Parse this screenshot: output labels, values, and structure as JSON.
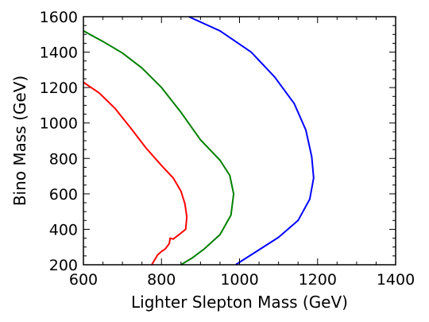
{
  "chart_data": {
    "type": "line",
    "title": "",
    "xlabel": "Lighter Slepton Mass (GeV)",
    "ylabel": "Bino Mass (GeV)",
    "xlim": [
      600,
      1400
    ],
    "ylim": [
      200,
      1600
    ],
    "xticks": [
      "600",
      "800",
      "1000",
      "1200",
      "1400"
    ],
    "yticks": [
      "200",
      "400",
      "600",
      "800",
      "1000",
      "1200",
      "1400",
      "1600"
    ],
    "grid": false,
    "series": [
      {
        "color": "#ff0000",
        "points": [
          [
            600,
            1230
          ],
          [
            640,
            1170
          ],
          [
            680,
            1085
          ],
          [
            720,
            975
          ],
          [
            760,
            860
          ],
          [
            800,
            760
          ],
          [
            830,
            690
          ],
          [
            850,
            615
          ],
          [
            860,
            545
          ],
          [
            865,
            470
          ],
          [
            862,
            400
          ],
          [
            845,
            370
          ],
          [
            830,
            345
          ],
          [
            822,
            350
          ],
          [
            820,
            320
          ],
          [
            810,
            290
          ],
          [
            800,
            275
          ],
          [
            790,
            255
          ],
          [
            775,
            200
          ]
        ]
      },
      {
        "color": "#008000",
        "points": [
          [
            600,
            1520
          ],
          [
            650,
            1460
          ],
          [
            700,
            1395
          ],
          [
            750,
            1310
          ],
          [
            800,
            1200
          ],
          [
            850,
            1060
          ],
          [
            900,
            905
          ],
          [
            950,
            790
          ],
          [
            975,
            705
          ],
          [
            985,
            600
          ],
          [
            978,
            480
          ],
          [
            950,
            370
          ],
          [
            910,
            290
          ],
          [
            880,
            240
          ],
          [
            850,
            200
          ]
        ]
      },
      {
        "color": "#0000ff",
        "points": [
          [
            870,
            1600
          ],
          [
            950,
            1520
          ],
          [
            1030,
            1400
          ],
          [
            1090,
            1260
          ],
          [
            1140,
            1110
          ],
          [
            1170,
            960
          ],
          [
            1185,
            810
          ],
          [
            1190,
            690
          ],
          [
            1180,
            570
          ],
          [
            1150,
            450
          ],
          [
            1100,
            355
          ],
          [
            1040,
            270
          ],
          [
            990,
            200
          ]
        ]
      }
    ]
  }
}
